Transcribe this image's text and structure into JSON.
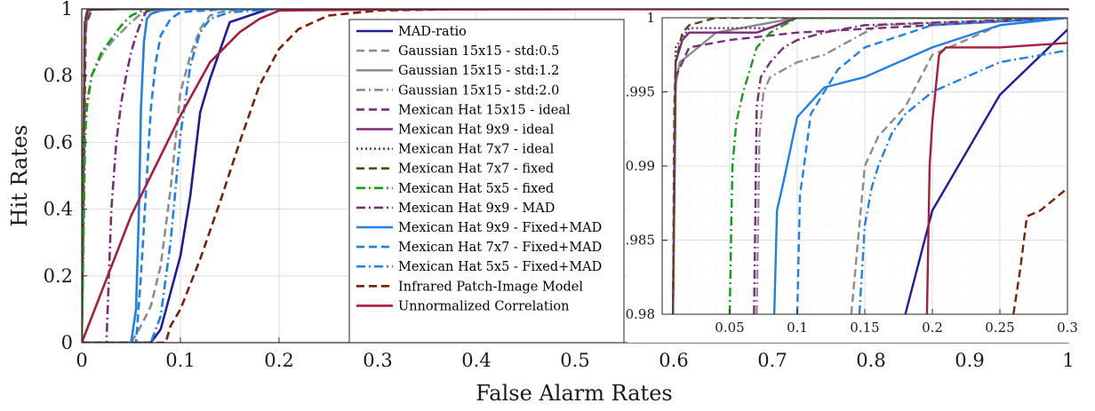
{
  "chart_data": [
    {
      "type": "line",
      "xlabel": "False Alarm Rates",
      "ylabel": "Hit Rates",
      "xlim": [
        0,
        1
      ],
      "ylim": [
        0,
        1
      ],
      "xticks": [
        "0",
        "0.1",
        "0.2",
        "0.3",
        "0.4",
        "0.5",
        "0.6",
        "0.7",
        "0.8",
        "0.9",
        "1"
      ],
      "yticks": [
        "0",
        "0.2",
        "0.4",
        "0.6",
        "0.8",
        "1"
      ],
      "grid": true,
      "legend_position": "center",
      "series": [
        {
          "name": "MAD-ratio",
          "color": "#1c1c9c",
          "style": "solid",
          "x": [
            0,
            0.07,
            0.08,
            0.09,
            0.1,
            0.11,
            0.12,
            0.13,
            0.15,
            0.19,
            0.23,
            1
          ],
          "y": [
            0,
            0,
            0.04,
            0.15,
            0.26,
            0.44,
            0.69,
            0.79,
            0.96,
            1.0,
            1.0,
            1.0
          ]
        },
        {
          "name": "Gaussian 15x15 - std:0.5",
          "color": "#8c8c8c",
          "style": "dash",
          "x": [
            0,
            0.05,
            0.06,
            0.07,
            0.08,
            0.09,
            0.1,
            0.11,
            0.12,
            0.13,
            0.14,
            0.15,
            0.18,
            1
          ],
          "y": [
            0,
            0,
            0.05,
            0.11,
            0.23,
            0.46,
            0.75,
            0.86,
            0.94,
            0.98,
            0.99,
            0.995,
            1.0,
            1.0
          ]
        },
        {
          "name": "Gaussian 15x15 - std:1.2",
          "color": "#8c8c8c",
          "style": "solid",
          "x": [
            0,
            0.003,
            0.006,
            0.01,
            0.05,
            1
          ],
          "y": [
            0,
            0.9,
            0.99,
            0.997,
            1.0,
            1.0
          ]
        },
        {
          "name": "Gaussian 15x15 - std:2.0",
          "color": "#8c8c8c",
          "style": "dashdot",
          "x": [
            0,
            0.004,
            0.01,
            0.02,
            0.03,
            0.04,
            0.05,
            0.06,
            0.07,
            0.1,
            1
          ],
          "y": [
            0,
            0.7,
            0.8,
            0.86,
            0.9,
            0.93,
            0.96,
            0.985,
            0.995,
            1.0,
            1.0
          ]
        },
        {
          "name": "Mexican Hat 15x15 - ideal",
          "color": "#7a2c7a",
          "style": "dash",
          "x": [
            0,
            0.004,
            0.01,
            0.05,
            1
          ],
          "y": [
            0,
            0.95,
            0.998,
            1.0,
            1.0
          ]
        },
        {
          "name": "Mexican Hat 9x9 - ideal",
          "color": "#7a2c7a",
          "style": "solid",
          "x": [
            0,
            0.003,
            0.006,
            0.05,
            1
          ],
          "y": [
            0,
            0.95,
            0.998,
            1.0,
            1.0
          ]
        },
        {
          "name": "Mexican Hat 7x7 - ideal",
          "color": "#7a2c7a",
          "style": "dotted",
          "x": [
            0,
            0.003,
            0.006,
            0.04,
            1
          ],
          "y": [
            0,
            0.96,
            0.999,
            1.0,
            1.0
          ]
        },
        {
          "name": "Mexican Hat 7x7 - fixed",
          "color": "#5b4a10",
          "style": "dash",
          "x": [
            0,
            0.003,
            0.006,
            0.04,
            1
          ],
          "y": [
            0,
            0.96,
            0.999,
            1.0,
            1.0
          ]
        },
        {
          "name": "Mexican Hat 5x5 - fixed",
          "color": "#12a112",
          "style": "dashdot",
          "x": [
            0,
            0.003,
            0.005,
            0.01,
            0.02,
            0.03,
            0.04,
            0.05,
            0.06,
            0.07,
            0.08,
            1
          ],
          "y": [
            0,
            0.6,
            0.7,
            0.8,
            0.87,
            0.91,
            0.95,
            0.98,
            0.993,
            0.998,
            1.0,
            1.0
          ]
        },
        {
          "name": "Mexican Hat 9x9 - MAD",
          "color": "#7a2c7a",
          "style": "dashdot",
          "x": [
            0,
            0.025,
            0.03,
            0.035,
            0.04,
            0.045,
            0.05,
            0.055,
            0.06,
            0.065,
            0.07,
            1
          ],
          "y": [
            0,
            0,
            0.4,
            0.6,
            0.72,
            0.8,
            0.87,
            0.92,
            0.96,
            0.99,
            1.0,
            1.0
          ]
        },
        {
          "name": "Mexican Hat 9x9 - Fixed+MAD",
          "color": "#1e80e8",
          "style": "solid",
          "x": [
            0,
            0.05,
            0.055,
            0.058,
            0.06,
            0.063,
            0.066,
            0.07,
            0.08,
            0.1,
            1
          ],
          "y": [
            0,
            0,
            0.1,
            0.4,
            0.7,
            0.9,
            0.97,
            0.985,
            0.995,
            1.0,
            1.0
          ]
        },
        {
          "name": "Mexican Hat 7x7 - Fixed+MAD",
          "color": "#1e80e8",
          "style": "dash",
          "x": [
            0,
            0.055,
            0.06,
            0.065,
            0.07,
            0.075,
            0.08,
            0.09,
            0.1,
            0.15,
            1
          ],
          "y": [
            0,
            0,
            0.2,
            0.45,
            0.7,
            0.84,
            0.92,
            0.97,
            0.99,
            1.0,
            1.0
          ]
        },
        {
          "name": "Mexican Hat 5x5 - Fixed+MAD",
          "color": "#1e80e8",
          "style": "dashdot",
          "x": [
            0,
            0.07,
            0.08,
            0.09,
            0.1,
            0.11,
            0.12,
            0.13,
            0.15,
            0.2,
            1
          ],
          "y": [
            0,
            0,
            0.08,
            0.3,
            0.62,
            0.83,
            0.93,
            0.97,
            0.99,
            1.0,
            1.0
          ]
        },
        {
          "name": "Infrared Patch-Image Model",
          "color": "#7a2008",
          "style": "dash",
          "x": [
            0,
            0.085,
            0.09,
            0.1,
            0.12,
            0.14,
            0.16,
            0.18,
            0.2,
            0.22,
            0.25,
            0.3,
            0.4,
            1
          ],
          "y": [
            0,
            0,
            0.05,
            0.1,
            0.25,
            0.42,
            0.6,
            0.77,
            0.88,
            0.94,
            0.98,
            0.995,
            1.0,
            1.0
          ]
        },
        {
          "name": "Unnormalized Correlation",
          "color": "#a81c3c",
          "style": "solid",
          "x": [
            0,
            0.05,
            0.1,
            0.13,
            0.16,
            0.18,
            0.2,
            0.3,
            0.5,
            1
          ],
          "y": [
            0,
            0.38,
            0.68,
            0.84,
            0.93,
            0.97,
            0.995,
            0.998,
            0.999,
            1.0
          ]
        }
      ]
    },
    {
      "type": "line",
      "xlim": [
        0,
        0.3
      ],
      "ylim": [
        0.98,
        1
      ],
      "xticks": [
        "0.05",
        "0.1",
        "0.15",
        "0.2",
        "0.25",
        "0.3"
      ],
      "yticks": [
        "0.98",
        "0.985",
        "0.99",
        "0.995",
        "1"
      ],
      "grid": true,
      "series": [
        {
          "name": "MAD-ratio",
          "x": [
            0.18,
            0.2,
            0.25,
            0.3
          ],
          "y": [
            0.98,
            0.987,
            0.9948,
            0.9992
          ]
        },
        {
          "name": "Gaussian 15x15 - std:0.5",
          "x": [
            0.14,
            0.15,
            0.16,
            0.18,
            0.2,
            0.25,
            0.3
          ],
          "y": [
            0.98,
            0.99,
            0.992,
            0.994,
            0.9975,
            0.9995,
            1.0
          ]
        },
        {
          "name": "Gaussian 15x15 - std:1.2",
          "x": [
            0.008,
            0.01,
            0.013,
            0.02,
            0.04,
            0.1,
            0.3
          ],
          "y": [
            0.98,
            0.9955,
            0.997,
            0.9975,
            0.999,
            1.0,
            1.0
          ]
        },
        {
          "name": "Gaussian 15x15 - std:2.0",
          "x": [
            0.07,
            0.072,
            0.075,
            0.08,
            0.1,
            0.12,
            0.16,
            0.3
          ],
          "y": [
            0.98,
            0.992,
            0.995,
            0.996,
            0.997,
            0.9975,
            0.9995,
            1.0
          ]
        },
        {
          "name": "Mexican Hat 15x15 - ideal",
          "x": [
            0.008,
            0.01,
            0.02,
            0.05,
            0.1,
            0.2,
            0.3
          ],
          "y": [
            0.98,
            0.996,
            0.998,
            0.9985,
            0.999,
            0.9995,
            1.0
          ]
        },
        {
          "name": "Mexican Hat 9x9 - ideal",
          "x": [
            0.008,
            0.01,
            0.015,
            0.02,
            0.07,
            0.1,
            0.3
          ],
          "y": [
            0.98,
            0.997,
            0.9985,
            0.999,
            0.999,
            1.0,
            1.0
          ]
        },
        {
          "name": "Mexican Hat 7x7 - ideal",
          "x": [
            0.008,
            0.01,
            0.02,
            0.08,
            0.1,
            0.3
          ],
          "y": [
            0.98,
            0.998,
            0.9993,
            0.9993,
            1.0,
            1.0
          ]
        },
        {
          "name": "Mexican Hat 7x7 - fixed",
          "x": [
            0.008,
            0.009,
            0.01,
            0.015,
            0.02,
            0.04,
            0.3
          ],
          "y": [
            0.98,
            0.994,
            0.997,
            0.999,
            0.9995,
            1.0,
            1.0
          ]
        },
        {
          "name": "Mexican Hat 5x5 - fixed",
          "x": [
            0.05,
            0.052,
            0.055,
            0.06,
            0.065,
            0.07,
            0.08,
            0.09,
            0.1,
            0.3
          ],
          "y": [
            0.98,
            0.99,
            0.993,
            0.995,
            0.9965,
            0.998,
            0.999,
            0.9995,
            1.0,
            1.0
          ]
        },
        {
          "name": "Mexican Hat 9x9 - MAD",
          "x": [
            0.068,
            0.07,
            0.073,
            0.08,
            0.09,
            0.1,
            0.12,
            0.15,
            0.3
          ],
          "y": [
            0.98,
            0.994,
            0.996,
            0.997,
            0.998,
            0.9985,
            0.999,
            0.9995,
            1.0
          ]
        },
        {
          "name": "Mexican Hat 9x9 - Fixed+MAD",
          "x": [
            0.083,
            0.085,
            0.09,
            0.1,
            0.12,
            0.15,
            0.18,
            0.2,
            0.25,
            0.3
          ],
          "y": [
            0.98,
            0.987,
            0.989,
            0.9933,
            0.9953,
            0.996,
            0.9972,
            0.998,
            0.9995,
            1.0
          ]
        },
        {
          "name": "Mexican Hat 7x7 - Fixed+MAD",
          "x": [
            0.1,
            0.102,
            0.105,
            0.11,
            0.12,
            0.13,
            0.15,
            0.2,
            0.3
          ],
          "y": [
            0.98,
            0.988,
            0.99,
            0.9935,
            0.995,
            0.9965,
            0.998,
            0.9995,
            1.0
          ]
        },
        {
          "name": "Mexican Hat 5x5 - Fixed+MAD",
          "x": [
            0.146,
            0.148,
            0.15,
            0.155,
            0.16,
            0.17,
            0.18,
            0.2,
            0.25,
            0.3
          ],
          "y": [
            0.98,
            0.983,
            0.986,
            0.9885,
            0.99,
            0.9922,
            0.9935,
            0.995,
            0.997,
            0.9978
          ]
        },
        {
          "name": "Infrared Patch-Image Model",
          "x": [
            0.26,
            0.265,
            0.27,
            0.28,
            0.3
          ],
          "y": [
            0.98,
            0.983,
            0.9866,
            0.987,
            0.9885
          ]
        },
        {
          "name": "Unnormalized Correlation",
          "x": [
            0.196,
            0.198,
            0.2,
            0.205,
            0.21,
            0.25,
            0.3
          ],
          "y": [
            0.98,
            0.99,
            0.993,
            0.9975,
            0.998,
            0.998,
            0.9983
          ]
        }
      ]
    }
  ]
}
